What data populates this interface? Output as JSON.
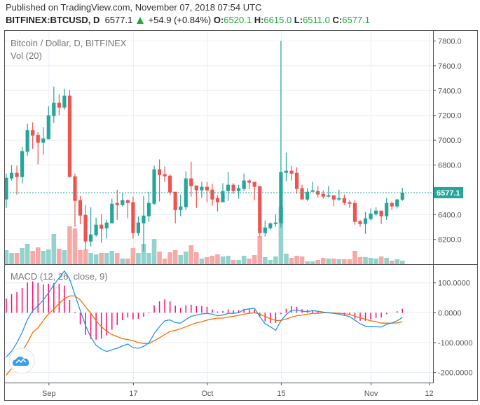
{
  "header": {
    "published": "Published on TradingView.com, November 07, 2018 07:54 UTC",
    "symbol": "BITFINEX:BTCUSD, D",
    "last": "6577.1",
    "change": "+54.9 (+0.84%)",
    "o_label": "O:",
    "o": "6520.1",
    "h_label": "H:",
    "h": "6615.0",
    "l_label": "L:",
    "l": "6511.0",
    "c_label": "C:",
    "c": "6577.1",
    "change_direction": "up"
  },
  "panes": {
    "price_title": "Bitcoin / Dollar, D, BITFINEX",
    "volume_title": "Vol (20)",
    "macd_title": "MACD (12, 26, close, 9)",
    "last_price_badge": "6577.1"
  },
  "colors": {
    "up": "#26a69a",
    "down": "#ef5350",
    "up_volume": "#94d3cd",
    "down_volume": "#f7a9a7",
    "macd_line": "#2196f3",
    "signal_line": "#ff6d00",
    "histogram": "#ff0a6c",
    "grid": "#e6eef4",
    "header_value": "#1ea83a"
  },
  "logo_icon": "tradingview-cloud-icon",
  "chart_data": [
    {
      "type": "candlestick",
      "title": "Bitcoin / Dollar, D, BITFINEX",
      "x_tick_labels": [
        "Sep",
        "17",
        "Oct",
        "15",
        "Nov",
        "12"
      ],
      "y_tick_labels": [
        "7800.0",
        "7600.0",
        "7400.0",
        "7200.0",
        "7000.0",
        "6800.0",
        "6400.0",
        "6200.0"
      ],
      "y_ticks": [
        7800,
        7600,
        7400,
        7200,
        7000,
        6800,
        6400,
        6200
      ],
      "ylim": [
        6020,
        7890
      ],
      "first_date": "2018-08-24",
      "last_date": "2018-11-07",
      "ohlc": [
        [
          6522,
          6731,
          6454,
          6697
        ],
        [
          6692,
          6799,
          6675,
          6737
        ],
        [
          6737,
          6794,
          6562,
          6703
        ],
        [
          6703,
          6946,
          6652,
          6912
        ],
        [
          6907,
          7133,
          6873,
          7082
        ],
        [
          7082,
          7144,
          6929,
          7037
        ],
        [
          7042,
          7065,
          6805,
          6980
        ],
        [
          6980,
          7105,
          6884,
          7014
        ],
        [
          7008,
          7274,
          7008,
          7201
        ],
        [
          7195,
          7432,
          7138,
          7302
        ],
        [
          7302,
          7370,
          7201,
          7263
        ],
        [
          7263,
          7415,
          7246,
          7359
        ],
        [
          7359,
          7404,
          6703,
          6703
        ],
        [
          6709,
          6731,
          6302,
          6511
        ],
        [
          6517,
          6550,
          6324,
          6392
        ],
        [
          6398,
          6477,
          6115,
          6183
        ],
        [
          6183,
          6460,
          6143,
          6240
        ],
        [
          6234,
          6375,
          6223,
          6319
        ],
        [
          6319,
          6403,
          6172,
          6285
        ],
        [
          6290,
          6358,
          6206,
          6336
        ],
        [
          6330,
          6528,
          6330,
          6488
        ],
        [
          6494,
          6601,
          6358,
          6477
        ],
        [
          6477,
          6573,
          6466,
          6517
        ],
        [
          6517,
          6522,
          6370,
          6494
        ],
        [
          6500,
          6545,
          6206,
          6251
        ],
        [
          6251,
          6386,
          6228,
          6336
        ],
        [
          6330,
          6550,
          6104,
          6392
        ],
        [
          6387,
          6584,
          6341,
          6494
        ],
        [
          6488,
          6794,
          6477,
          6765
        ],
        [
          6765,
          6845,
          6505,
          6720
        ],
        [
          6726,
          6788,
          6664,
          6709
        ],
        [
          6714,
          6726,
          6556,
          6579
        ],
        [
          6584,
          6584,
          6330,
          6437
        ],
        [
          6437,
          6562,
          6387,
          6466
        ],
        [
          6460,
          6748,
          6437,
          6692
        ],
        [
          6692,
          6827,
          6545,
          6630
        ],
        [
          6635,
          6635,
          6454,
          6596
        ],
        [
          6596,
          6664,
          6534,
          6624
        ],
        [
          6624,
          6664,
          6500,
          6596
        ],
        [
          6601,
          6647,
          6471,
          6522
        ],
        [
          6533,
          6556,
          6426,
          6500
        ],
        [
          6500,
          6653,
          6500,
          6590
        ],
        [
          6590,
          6743,
          6511,
          6641
        ],
        [
          6641,
          6653,
          6567,
          6590
        ],
        [
          6590,
          6641,
          6528,
          6613
        ],
        [
          6607,
          6731,
          6590,
          6675
        ],
        [
          6675,
          6686,
          6607,
          6658
        ],
        [
          6664,
          6664,
          6517,
          6624
        ],
        [
          6630,
          6630,
          6223,
          6251
        ],
        [
          6251,
          6353,
          6223,
          6296
        ],
        [
          6290,
          6336,
          6280,
          6330
        ],
        [
          6324,
          6403,
          6302,
          6336
        ],
        [
          6330,
          7800,
          6296,
          6743
        ],
        [
          6737,
          6901,
          6669,
          6754
        ],
        [
          6754,
          6794,
          6675,
          6731
        ],
        [
          6737,
          6782,
          6567,
          6607
        ],
        [
          6613,
          6641,
          6522,
          6522
        ],
        [
          6522,
          6613,
          6511,
          6584
        ],
        [
          6584,
          6664,
          6584,
          6596
        ],
        [
          6590,
          6630,
          6539,
          6562
        ],
        [
          6567,
          6596,
          6528,
          6545
        ],
        [
          6545,
          6630,
          6539,
          6556
        ],
        [
          6556,
          6556,
          6466,
          6522
        ],
        [
          6522,
          6601,
          6511,
          6533
        ],
        [
          6533,
          6562,
          6477,
          6494
        ],
        [
          6500,
          6517,
          6454,
          6488
        ],
        [
          6494,
          6517,
          6319,
          6341
        ],
        [
          6347,
          6358,
          6302,
          6324
        ],
        [
          6324,
          6420,
          6245,
          6370
        ],
        [
          6364,
          6449,
          6353,
          6409
        ],
        [
          6403,
          6460,
          6392,
          6432
        ],
        [
          6432,
          6432,
          6324,
          6387
        ],
        [
          6387,
          6534,
          6358,
          6494
        ],
        [
          6494,
          6505,
          6437,
          6466
        ],
        [
          6466,
          6528,
          6449,
          6522
        ],
        [
          6520.1,
          6615.0,
          6511.0,
          6577.1
        ]
      ],
      "volume_relative": [
        20,
        16,
        16,
        23,
        29,
        19,
        24,
        19,
        21,
        43,
        22,
        20,
        54,
        51,
        20,
        21,
        16,
        14,
        16,
        16,
        19,
        16,
        8,
        8,
        23,
        16,
        29,
        16,
        36,
        18,
        8,
        17,
        20,
        13,
        18,
        27,
        17,
        8,
        10,
        12,
        14,
        11,
        12,
        6,
        6,
        12,
        8,
        13,
        40,
        10,
        6,
        11,
        82,
        15,
        9,
        12,
        11,
        4,
        4,
        6,
        9,
        8,
        8,
        7,
        7,
        7,
        19,
        10,
        10,
        9,
        8,
        11,
        9,
        5,
        7,
        5
      ],
      "last_price": 6577.1,
      "grid": true
    },
    {
      "type": "line",
      "title": "MACD (12, 26, close, 9)",
      "y_tick_labels": [
        "100.0000",
        "0.0000",
        "-100.0000",
        "-200.0000"
      ],
      "y_ticks": [
        100,
        0,
        -100,
        -200
      ],
      "ylim": [
        -237,
        160
      ],
      "macd": [
        -148,
        -129,
        -101,
        -66,
        -23,
        7,
        23,
        43,
        66,
        94,
        117,
        140,
        113,
        59,
        8,
        -43,
        -82,
        -109,
        -122,
        -130,
        -124,
        -119,
        -111,
        -105,
        -117,
        -119,
        -113,
        -101,
        -70,
        -47,
        -27,
        -24,
        -33,
        -35,
        -23,
        -12,
        -8,
        -4,
        -2,
        -5,
        -10,
        -8,
        -2,
        -2,
        0,
        10,
        13,
        15,
        -13,
        -37,
        -47,
        -59,
        -27,
        -6,
        8,
        9,
        5,
        4,
        7,
        5,
        2,
        0,
        -2,
        -5,
        -9,
        -13,
        -25,
        -37,
        -45,
        -47,
        -47,
        -48,
        -39,
        -34,
        -27,
        -16
      ],
      "signal": [
        -209,
        -187,
        -164,
        -129,
        -101,
        -66,
        -51,
        -26,
        -4,
        12,
        31,
        47,
        56,
        56,
        43,
        20,
        -2,
        -27,
        -47,
        -62,
        -73,
        -80,
        -87,
        -90,
        -94,
        -100,
        -103,
        -103,
        -94,
        -84,
        -73,
        -63,
        -59,
        -54,
        -47,
        -40,
        -34,
        -30,
        -25,
        -21,
        -18,
        -18,
        -15,
        -12,
        -9,
        -5,
        -2,
        0,
        -5,
        -13,
        -20,
        -26,
        -26,
        -21,
        -15,
        -10,
        -8,
        -5,
        -2,
        -2,
        0,
        0,
        -1,
        -2,
        -3,
        -6,
        -12,
        -17,
        -22,
        -27,
        -30,
        -35,
        -35,
        -35,
        -34,
        -30
      ],
      "histogram": [
        47,
        62,
        69,
        83,
        101,
        105,
        100,
        95,
        97,
        99,
        97,
        91,
        43,
        3,
        -39,
        -74,
        -88,
        -90,
        -87,
        -76,
        -57,
        -41,
        -25,
        -16,
        -22,
        -20,
        -13,
        2,
        25,
        38,
        45,
        38,
        23,
        16,
        25,
        27,
        22,
        22,
        20,
        11,
        4,
        6,
        11,
        8,
        8,
        13,
        11,
        10,
        -15,
        -29,
        -34,
        -34,
        -5,
        13,
        22,
        20,
        12,
        10,
        7,
        5,
        1,
        1,
        -1,
        -1,
        -8,
        -5,
        -20,
        -27,
        -27,
        -22,
        -18,
        -16,
        -5,
        0,
        5,
        13
      ],
      "grid": true
    }
  ]
}
